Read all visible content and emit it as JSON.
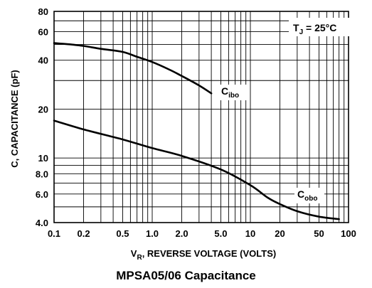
{
  "chart_data": {
    "type": "line",
    "title": "MPSA05/06 Capacitance",
    "xlabel": {
      "main": "V",
      "sub": "R",
      "rest": ", REVERSE VOLTAGE (VOLTS)"
    },
    "ylabel": "C, CAPACITANCE (pF)",
    "x_scale": "log",
    "y_scale": "log",
    "xlim": [
      0.1,
      100
    ],
    "ylim": [
      4.0,
      80
    ],
    "x_ticks": [
      {
        "value": 0.1,
        "label": "0.1"
      },
      {
        "value": 0.2,
        "label": "0.2"
      },
      {
        "value": 0.5,
        "label": "0.5"
      },
      {
        "value": 1,
        "label": "1.0"
      },
      {
        "value": 2,
        "label": "2.0"
      },
      {
        "value": 5,
        "label": "5.0"
      },
      {
        "value": 10,
        "label": "10"
      },
      {
        "value": 20,
        "label": "20"
      },
      {
        "value": 50,
        "label": "50"
      },
      {
        "value": 100,
        "label": "100"
      }
    ],
    "y_ticks": [
      {
        "value": 4.0,
        "label": "4.0"
      },
      {
        "value": 6.0,
        "label": "6.0"
      },
      {
        "value": 8.0,
        "label": "8.0"
      },
      {
        "value": 10,
        "label": "10"
      },
      {
        "value": 20,
        "label": "20"
      },
      {
        "value": 40,
        "label": "40"
      },
      {
        "value": 60,
        "label": "60"
      },
      {
        "value": 80,
        "label": "80"
      }
    ],
    "x_grid": [
      0.1,
      0.2,
      0.3,
      0.4,
      0.5,
      0.6,
      0.7,
      0.8,
      0.9,
      1,
      2,
      3,
      4,
      5,
      6,
      7,
      8,
      9,
      10,
      20,
      30,
      40,
      50,
      60,
      70,
      80,
      90,
      100
    ],
    "y_grid": [
      4,
      5,
      6,
      7,
      8,
      9,
      10,
      20,
      30,
      40,
      50,
      60,
      70,
      80
    ],
    "grid": true,
    "annotation": {
      "main": "T",
      "sub": "J",
      "rest": " = 25°C"
    },
    "series": [
      {
        "name": {
          "main": "C",
          "sub": "ibo"
        },
        "color": "#000000",
        "points": [
          [
            0.1,
            51
          ],
          [
            0.15,
            50
          ],
          [
            0.2,
            49
          ],
          [
            0.3,
            47
          ],
          [
            0.5,
            45
          ],
          [
            0.7,
            42
          ],
          [
            1.0,
            39
          ],
          [
            1.5,
            35
          ],
          [
            2.0,
            32
          ],
          [
            3.0,
            28
          ],
          [
            4.0,
            25
          ]
        ]
      },
      {
        "name": {
          "main": "C",
          "sub": "obo"
        },
        "color": "#000000",
        "points": [
          [
            0.1,
            17
          ],
          [
            0.2,
            15
          ],
          [
            0.5,
            13
          ],
          [
            1.0,
            11.5
          ],
          [
            2.0,
            10.3
          ],
          [
            5.0,
            8.5
          ],
          [
            10,
            6.8
          ],
          [
            15,
            5.7
          ],
          [
            20,
            5.2
          ],
          [
            30,
            4.7
          ],
          [
            50,
            4.35
          ],
          [
            80,
            4.2
          ]
        ]
      }
    ]
  }
}
